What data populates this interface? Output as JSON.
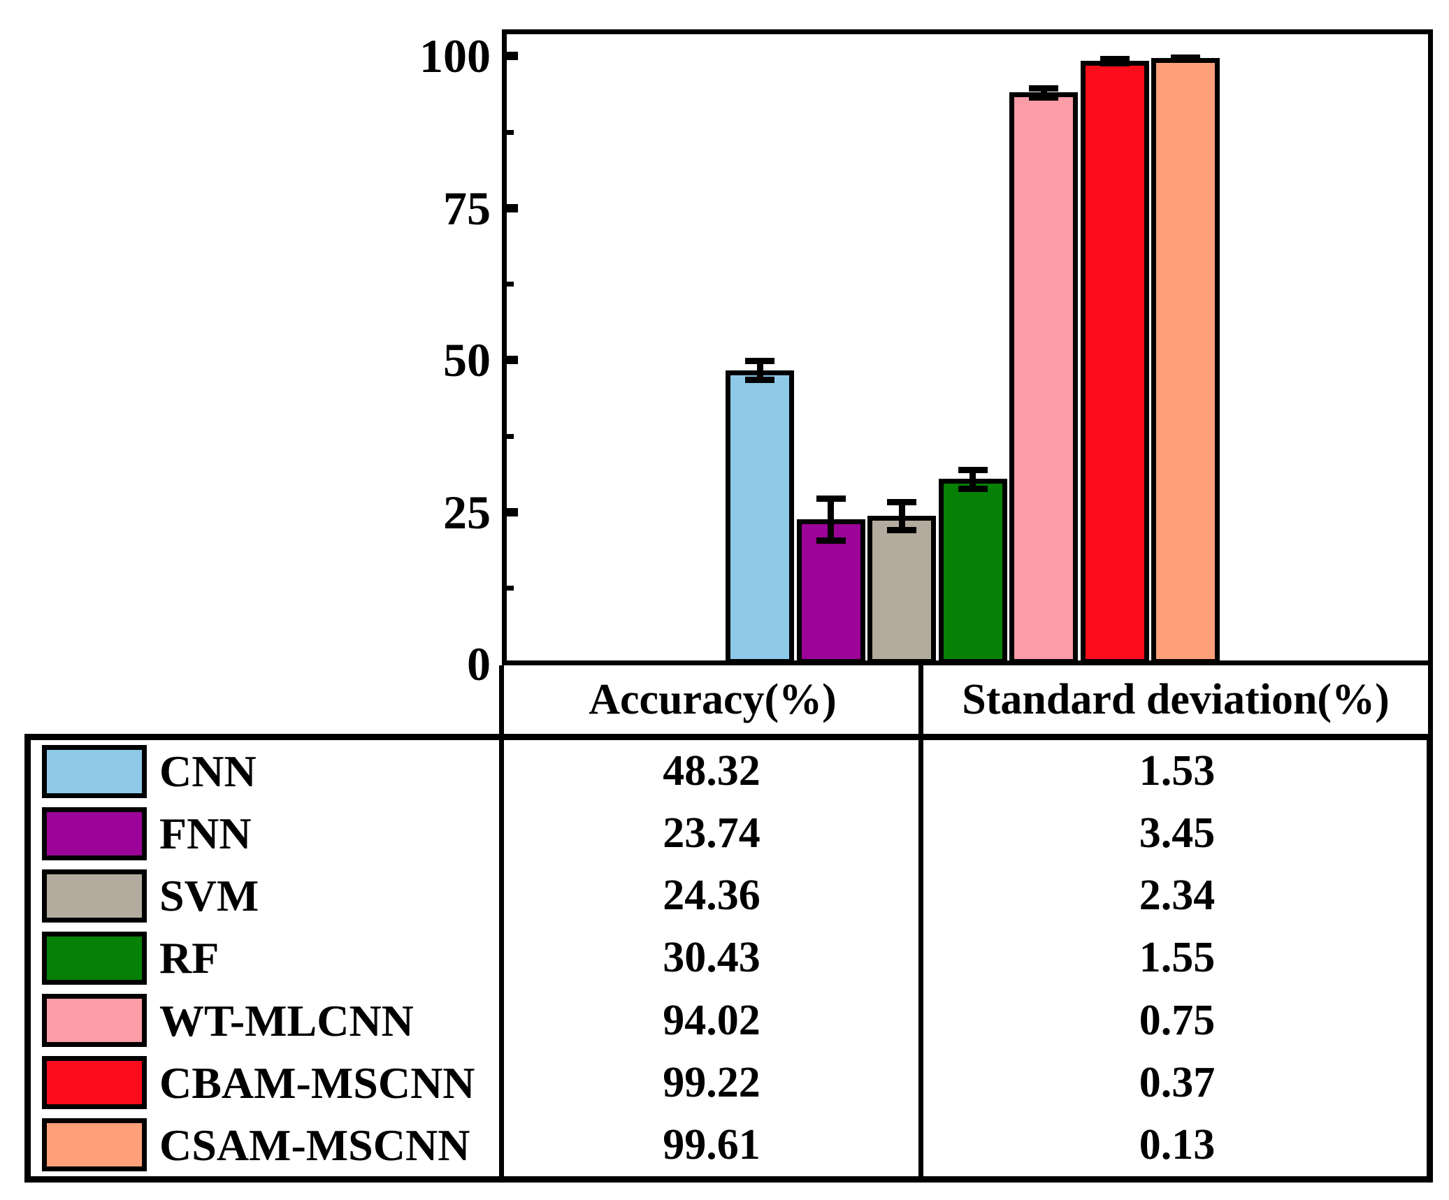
{
  "y_axis": {
    "tick_labels": [
      "100",
      "75",
      "50",
      "25",
      "0"
    ],
    "tick_values": [
      100,
      75,
      50,
      25,
      0
    ],
    "minor_tick_values": [
      87.5,
      62.5,
      37.5,
      12.5
    ]
  },
  "table": {
    "headers": [
      "Accuracy(%)",
      "Standard deviation(%)"
    ],
    "rows": [
      {
        "label": "CNN",
        "accuracy": "48.32",
        "std": "1.53",
        "color": "#8FC9E8"
      },
      {
        "label": "FNN",
        "accuracy": "23.74",
        "std": "3.45",
        "color": "#9C0398"
      },
      {
        "label": "SVM",
        "accuracy": "24.36",
        "std": "2.34",
        "color": "#B3AB9D"
      },
      {
        "label": "RF",
        "accuracy": "30.43",
        "std": "1.55",
        "color": "#068106"
      },
      {
        "label": "WT-MLCNN",
        "accuracy": "94.02",
        "std": "0.75",
        "color": "#FB9CA7"
      },
      {
        "label": "CBAM-MSCNN",
        "accuracy": "99.22",
        "std": "0.37",
        "color": "#FC0D1B"
      },
      {
        "label": "CSAM-MSCNN",
        "accuracy": "99.61",
        "std": "0.13",
        "color": "#FFA07A"
      }
    ]
  },
  "chart_data": {
    "type": "bar",
    "title": "",
    "xlabel": "",
    "ylabel": "",
    "categories": [
      "CNN",
      "FNN",
      "SVM",
      "RF",
      "WT-MLCNN",
      "CBAM-MSCNN",
      "CSAM-MSCNN"
    ],
    "series": [
      {
        "name": "Accuracy(%)",
        "values": [
          48.32,
          23.74,
          24.36,
          30.43,
          94.02,
          99.22,
          99.61
        ]
      },
      {
        "name": "Standard deviation(%)",
        "values": [
          1.53,
          3.45,
          2.34,
          1.55,
          0.75,
          0.37,
          0.13
        ]
      }
    ],
    "error_bars": {
      "applies_to": "Accuracy(%)",
      "values": [
        1.53,
        3.45,
        2.34,
        1.55,
        0.75,
        0.37,
        0.13
      ]
    },
    "bar_colors": [
      "#8FC9E8",
      "#9C0398",
      "#B3AB9D",
      "#068106",
      "#FB9CA7",
      "#FC0D1B",
      "#FFA07A"
    ],
    "ylim": [
      0,
      100
    ],
    "yticks": [
      0,
      25,
      50,
      75,
      100
    ],
    "minor_yticks": [
      12.5,
      37.5,
      62.5,
      87.5
    ],
    "grid": false,
    "legend_position": "left column of attached data table"
  }
}
